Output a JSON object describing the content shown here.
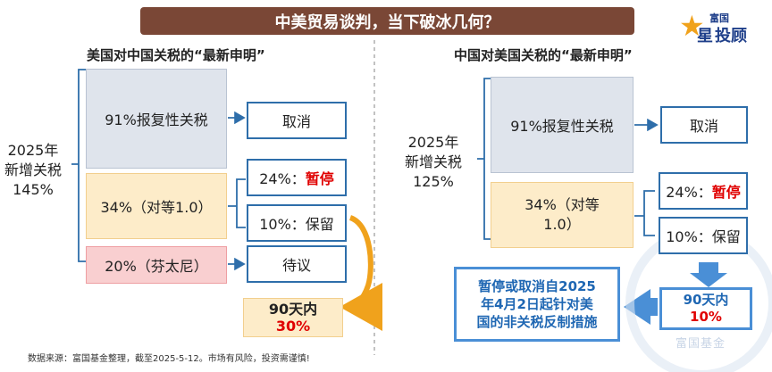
{
  "header": {
    "title": "中美贸易谈判，当下破冰几何？"
  },
  "logo": {
    "top_text": "富国",
    "star": "星",
    "bottom_text": "投顾"
  },
  "left": {
    "heading": "美国对中国关税的“最新申明”",
    "year_label": [
      "2025年",
      "新增关税",
      "145%"
    ],
    "tiers": [
      {
        "label": "91%报复性关税",
        "result": "取消"
      },
      {
        "label": "34%（对等1.0）",
        "results": [
          {
            "rate": "24%：",
            "status": "暂停"
          },
          {
            "rate": "10%：",
            "status": "保留"
          }
        ]
      },
      {
        "label": "20%（芬太尼）",
        "result": "待议"
      }
    ],
    "outcome": {
      "line1": "90天内",
      "line2": "30%"
    }
  },
  "right": {
    "heading": "中国对美国关税的“最新申明”",
    "year_label": [
      "2025年",
      "新增关税",
      "125%"
    ],
    "tiers": [
      {
        "label": "91%报复性关税",
        "result": "取消"
      },
      {
        "label": "34%（对等",
        "label2": "1.0）",
        "results": [
          {
            "rate": "24%：",
            "status": "暂停"
          },
          {
            "rate": "10%：",
            "status": "保留"
          }
        ]
      }
    ],
    "outcome": {
      "line1": "90天内",
      "line2": "10%"
    },
    "measure": [
      "暂停或取消自2025",
      "年4月2日起针对美",
      "国的非关税反制措施"
    ]
  },
  "source": "数据来源：富国基金整理，截至2025-5-12。市场有风险，投资需谨慎!",
  "watermark": "富国基金",
  "colors": {
    "title_bg": "#7a4736",
    "accent_blue": "#2e6eaa",
    "light_blue": "#4a8fd6",
    "red": "#e00000",
    "gold": "#f0a21c",
    "gray_box": "#dfe4ec",
    "cream_box": "#fdecc9",
    "pink_box": "#f9cfd0"
  }
}
